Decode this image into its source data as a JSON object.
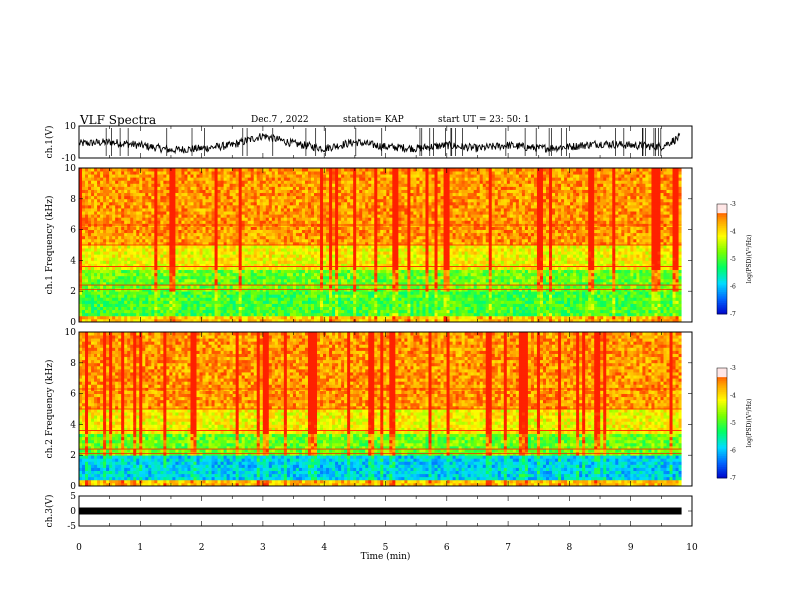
{
  "header": {
    "title": "VLF Spectra",
    "date": "Dec.7 , 2022",
    "station": "station= KAP",
    "start_ut": "start UT =  23: 50: 1"
  },
  "colors": {
    "trace": "#000000",
    "axis": "#000000",
    "colormap": [
      "#0000c8",
      "#0064ff",
      "#00dcff",
      "#00ff64",
      "#78ff00",
      "#ffff00",
      "#ffa000",
      "#ff2000",
      "#ffd0d0",
      "#ffffff"
    ]
  },
  "chart_data": [
    {
      "type": "line",
      "ylabel": "ch.1(V)",
      "ylim": [
        -10,
        10
      ],
      "yticks": [
        "10",
        "-10"
      ],
      "xlim": [
        0,
        10
      ],
      "series": [
        {
          "x": [
            0,
            0.5,
            1.0,
            1.5,
            2.0,
            2.5,
            3.0,
            3.5,
            4.0,
            4.5,
            5.0,
            5.5,
            6.0,
            6.5,
            7.0,
            7.5,
            8.0,
            8.5,
            9.0,
            9.5,
            9.8
          ],
          "values": [
            -1,
            0,
            -2,
            -5,
            -4,
            -2,
            4,
            -1,
            -4,
            0,
            -3,
            -4,
            -2,
            -4,
            -2,
            -4,
            -3,
            -1,
            -2,
            -3,
            3
          ]
        }
      ]
    },
    {
      "type": "heatmap",
      "ylabel": "ch.1 Frequency (kHz)",
      "ylim": [
        0,
        10
      ],
      "yticks": [
        "0",
        "2",
        "4",
        "6",
        "8",
        "10"
      ],
      "xlim": [
        0,
        10
      ],
      "data_extent_min": 9.83,
      "colorbar": {
        "label": "log(PSD)(V²/Hz)",
        "range": [
          -7,
          -3
        ],
        "ticks": [
          "-3",
          "-4",
          "-5",
          "-6",
          "-7"
        ]
      }
    },
    {
      "type": "heatmap",
      "ylabel": "ch.2 Frequency (kHz)",
      "ylim": [
        0,
        10
      ],
      "yticks": [
        "0",
        "2",
        "4",
        "6",
        "8",
        "10"
      ],
      "xlim": [
        0,
        10
      ],
      "data_extent_min": 9.83,
      "colorbar": {
        "label": "log(PSD)(V²/Hz)",
        "range": [
          -7,
          -3
        ],
        "ticks": [
          "-3",
          "-4",
          "-5",
          "-6",
          "-7"
        ]
      }
    },
    {
      "type": "line",
      "ylabel": "ch.3(V)",
      "ylim": [
        -5,
        5
      ],
      "yticks": [
        "5",
        "0",
        "-5"
      ],
      "xlim": [
        0,
        10
      ],
      "series": [
        {
          "x": [
            0,
            9.83
          ],
          "values": [
            0,
            0
          ]
        }
      ]
    }
  ],
  "xaxis": {
    "label": "Time (min)",
    "ticks": [
      "0",
      "1",
      "2",
      "3",
      "4",
      "5",
      "6",
      "7",
      "8",
      "9",
      "10"
    ]
  }
}
